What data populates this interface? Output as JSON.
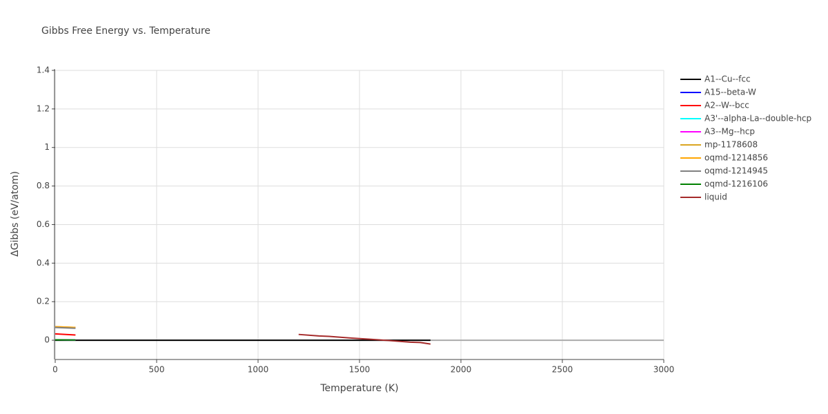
{
  "chart_data": {
    "type": "line",
    "title": "Gibbs Free Energy vs. Temperature",
    "x_label": "Temperature (K)",
    "y_label": "ΔGibbs (eV/atom)",
    "xlim": [
      0,
      3000
    ],
    "xticks": [
      0,
      500,
      1000,
      1500,
      2000,
      2500,
      3000
    ],
    "ylim": [
      -0.1,
      1.4
    ],
    "yticks": [
      0,
      0.2,
      0.4,
      0.6,
      0.8,
      1,
      1.2,
      1.4
    ],
    "grid": true,
    "series": [
      {
        "name": "A1--Cu--fcc",
        "color": "#000000",
        "x": [
          0,
          1850
        ],
        "values": [
          0,
          0
        ]
      },
      {
        "name": "A15--beta-W",
        "color": "#0000ff",
        "x": [
          0,
          100
        ],
        "values": [
          0.068,
          0.064
        ]
      },
      {
        "name": "A2--W--bcc",
        "color": "#ff0000",
        "x": [
          0,
          100
        ],
        "values": [
          0.033,
          0.027
        ]
      },
      {
        "name": "A3'--alpha-La--double-hcp",
        "color": "#00ffff",
        "x": [
          0,
          100
        ],
        "values": [
          0.002,
          0.001
        ]
      },
      {
        "name": "A3--Mg--hcp",
        "color": "#ff00ff",
        "x": [
          0,
          100
        ],
        "values": [
          0.002,
          0.001
        ]
      },
      {
        "name": "mp-1178608",
        "color": "#daa520",
        "x": [
          0,
          100
        ],
        "values": [
          0.07,
          0.066
        ]
      },
      {
        "name": "oqmd-1214856",
        "color": "#ffa500",
        "x": [
          0,
          100
        ],
        "values": [
          0.07,
          0.066
        ]
      },
      {
        "name": "oqmd-1214945",
        "color": "#808080",
        "x": [
          0,
          100
        ],
        "values": [
          0.066,
          0.062
        ]
      },
      {
        "name": "oqmd-1216106",
        "color": "#008000",
        "x": [
          0,
          100
        ],
        "values": [
          0.002,
          0.001
        ]
      },
      {
        "name": "liquid",
        "color": "#a52a2a",
        "x": [
          1200,
          1300,
          1350,
          1450,
          1550,
          1650,
          1750,
          1800,
          1850
        ],
        "values": [
          0.03,
          0.022,
          0.02,
          0.012,
          0.005,
          -0.002,
          -0.01,
          -0.012,
          -0.02
        ]
      }
    ]
  }
}
